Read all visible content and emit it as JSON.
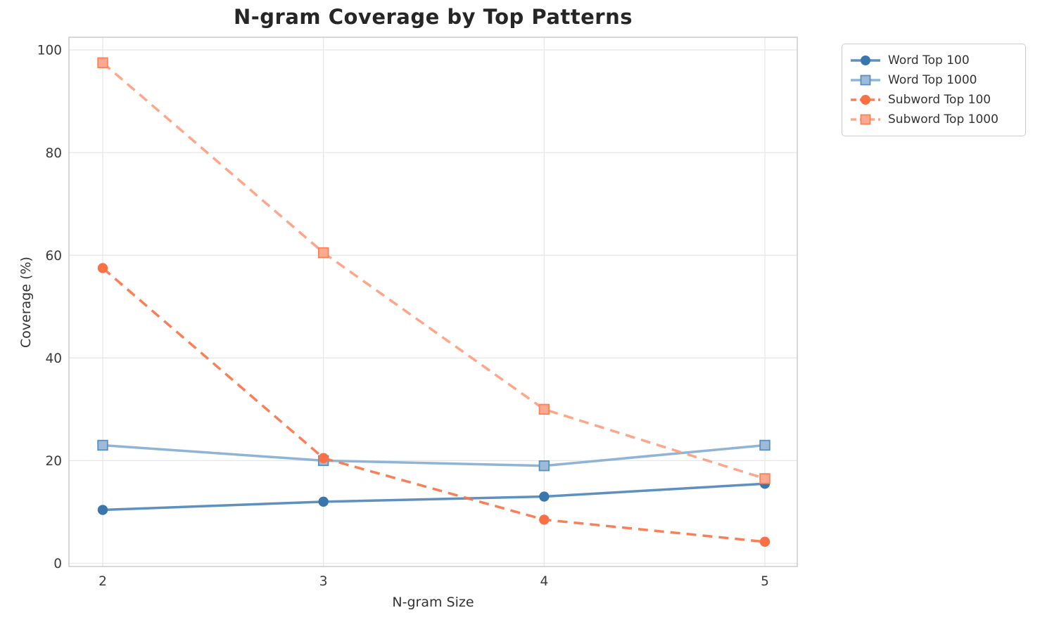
{
  "chart_data": {
    "type": "line",
    "title": "N-gram Coverage by Top Patterns",
    "xlabel": "N-gram Size",
    "ylabel": "Coverage (%)",
    "x": [
      2,
      3,
      4,
      5
    ],
    "xtick_labels": [
      "2",
      "3",
      "4",
      "5"
    ],
    "ytick_values": [
      0,
      20,
      40,
      60,
      80,
      100
    ],
    "ytick_labels": [
      "0",
      "20",
      "40",
      "60",
      "80",
      "100"
    ],
    "xlim": [
      1.85,
      5.15
    ],
    "ylim": [
      -5,
      103
    ],
    "grid": true,
    "grid_color": "#e7e7e7",
    "spine_color": "#cccccc",
    "legend_position": "outside-upper-right",
    "series": [
      {
        "name": "Word Top 100",
        "values": [
          10.4,
          12.0,
          13.0,
          15.5
        ],
        "color": "#3b79b1",
        "line_opacity": 0.82,
        "marker": "circle",
        "marker_fill": "#3876ad",
        "marker_edge": "none",
        "line_style": "solid"
      },
      {
        "name": "Word Top 1000",
        "values": [
          23.0,
          20.0,
          19.0,
          23.0
        ],
        "color": "#8ab0d3",
        "line_opacity": 0.95,
        "marker": "square",
        "marker_fill": "#9dbbd9",
        "marker_edge": "#5c8fbf",
        "line_style": "solid"
      },
      {
        "name": "Subword Top 100",
        "values": [
          57.5,
          20.5,
          8.5,
          4.2
        ],
        "color": "#fb7448",
        "line_opacity": 0.92,
        "marker": "circle",
        "marker_fill": "#fa7044",
        "marker_edge": "none",
        "line_style": "dashed"
      },
      {
        "name": "Subword Top 1000",
        "values": [
          97.5,
          60.5,
          30.0,
          16.5
        ],
        "color": "#fda184",
        "line_opacity": 0.95,
        "marker": "square",
        "marker_fill": "#fca98f",
        "marker_edge": "#fa8258",
        "line_style": "dashed"
      }
    ]
  }
}
